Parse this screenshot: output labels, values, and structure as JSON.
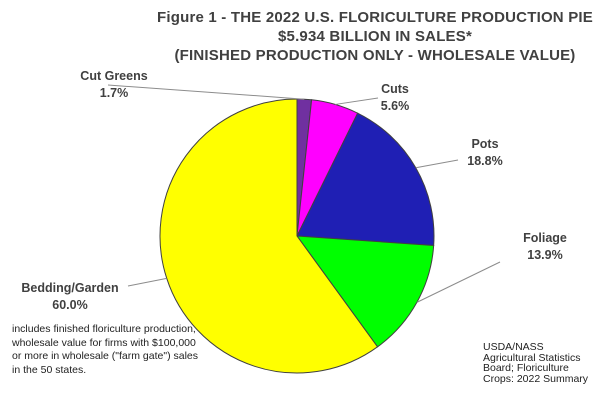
{
  "chart_data": {
    "type": "pie",
    "title_lines": [
      "Figure 1 - THE 2022 U.S. FLORICULTURE PRODUCTION PIE",
      "$5.934 BILLION IN SALES*",
      "(FINISHED PRODUCTION ONLY - WHOLESALE VALUE)"
    ],
    "slices": [
      {
        "name": "Cut Greens",
        "value": 1.7,
        "label": "1.7%",
        "color": "#7030a0"
      },
      {
        "name": "Cuts",
        "value": 5.6,
        "label": "5.6%",
        "color": "#ff00ff"
      },
      {
        "name": "Pots",
        "value": 18.8,
        "label": "18.8%",
        "color": "#1f1fb4"
      },
      {
        "name": "Foliage",
        "value": 13.9,
        "label": "13.9%",
        "color": "#00ff00"
      },
      {
        "name": "Bedding/Garden",
        "value": 60.0,
        "label": "60.0%",
        "color": "#ffff00"
      }
    ],
    "start_angle_deg": 90,
    "direction": "clockwise",
    "slice_outline": "#404040",
    "footnote": "includes finished floriculture production, wholesale value for firms with $100,000 or more in wholesale (\"farm gate\") sales in the 50 states.",
    "source": "USDA/NASS Agricultural Statistics Board; Floriculture Crops: 2022 Summary"
  }
}
